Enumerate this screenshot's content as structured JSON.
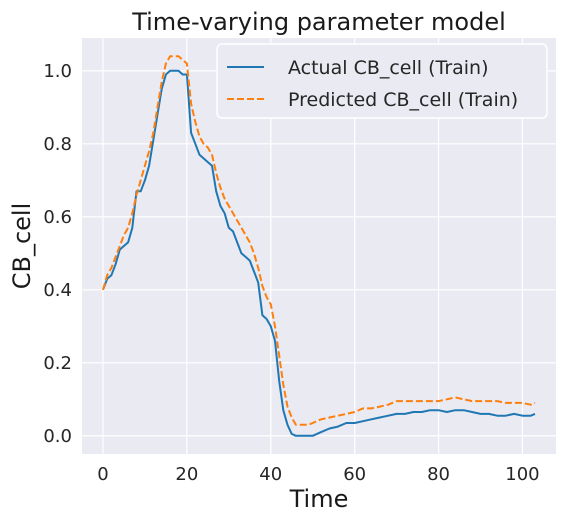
{
  "chart_data": {
    "type": "line",
    "title": "Time-varying parameter model",
    "xlabel": "Time",
    "ylabel": "CB_cell",
    "xlim": [
      -5,
      108
    ],
    "ylim": [
      -0.05,
      1.09
    ],
    "xticks": [
      0,
      20,
      40,
      60,
      80,
      100
    ],
    "yticks": [
      0.0,
      0.2,
      0.4,
      0.6,
      0.8,
      1.0
    ],
    "xtick_labels": [
      "0",
      "20",
      "40",
      "60",
      "80",
      "100"
    ],
    "ytick_labels": [
      "0.0",
      "0.2",
      "0.4",
      "0.6",
      "0.8",
      "1.0"
    ],
    "grid": true,
    "legend_position": "top-right",
    "background_color": "#eaeaf2",
    "series": [
      {
        "name": "Actual CB_cell (Train)",
        "color": "#1f77b4",
        "style": "solid",
        "x": [
          0,
          1,
          2,
          3,
          4,
          5,
          6,
          7,
          8,
          9,
          10,
          11,
          12,
          13,
          14,
          15,
          16,
          17,
          18,
          19,
          20,
          21,
          22,
          23,
          24,
          25,
          26,
          27,
          28,
          29,
          30,
          31,
          32,
          33,
          34,
          35,
          36,
          37,
          38,
          39,
          40,
          41,
          42,
          43,
          44,
          45,
          46,
          47,
          48,
          49,
          50,
          52,
          54,
          56,
          58,
          60,
          62,
          64,
          66,
          68,
          70,
          72,
          74,
          76,
          78,
          80,
          82,
          84,
          86,
          88,
          90,
          92,
          94,
          96,
          98,
          100,
          102,
          103
        ],
        "y": [
          0.4,
          0.43,
          0.44,
          0.47,
          0.51,
          0.52,
          0.53,
          0.57,
          0.67,
          0.67,
          0.7,
          0.74,
          0.81,
          0.88,
          0.95,
          0.99,
          1.0,
          1.0,
          1.0,
          0.99,
          0.99,
          0.83,
          0.8,
          0.77,
          0.76,
          0.75,
          0.74,
          0.67,
          0.63,
          0.61,
          0.57,
          0.56,
          0.53,
          0.5,
          0.49,
          0.48,
          0.45,
          0.42,
          0.33,
          0.32,
          0.3,
          0.26,
          0.15,
          0.07,
          0.03,
          0.005,
          0.0,
          0.0,
          0.0,
          0.0,
          0.0,
          0.01,
          0.02,
          0.025,
          0.035,
          0.035,
          0.04,
          0.045,
          0.05,
          0.055,
          0.06,
          0.06,
          0.065,
          0.065,
          0.07,
          0.07,
          0.065,
          0.07,
          0.07,
          0.065,
          0.06,
          0.06,
          0.055,
          0.055,
          0.06,
          0.055,
          0.055,
          0.06
        ]
      },
      {
        "name": "Predicted CB_cell (Train)",
        "color": "#ff7f0e",
        "style": "dashed",
        "x": [
          0,
          1,
          2,
          3,
          4,
          5,
          6,
          7,
          8,
          9,
          10,
          11,
          12,
          13,
          14,
          15,
          16,
          17,
          18,
          19,
          20,
          21,
          22,
          23,
          24,
          25,
          26,
          27,
          28,
          29,
          30,
          31,
          32,
          33,
          34,
          35,
          36,
          37,
          38,
          39,
          40,
          41,
          42,
          43,
          44,
          45,
          46,
          47,
          48,
          49,
          50,
          52,
          54,
          56,
          58,
          60,
          62,
          64,
          66,
          68,
          70,
          72,
          74,
          76,
          78,
          80,
          82,
          84,
          86,
          88,
          90,
          92,
          94,
          96,
          98,
          100,
          102,
          103
        ],
        "y": [
          0.4,
          0.44,
          0.46,
          0.49,
          0.52,
          0.55,
          0.57,
          0.61,
          0.66,
          0.7,
          0.74,
          0.78,
          0.83,
          0.9,
          0.97,
          1.02,
          1.04,
          1.04,
          1.04,
          1.03,
          1.02,
          0.91,
          0.86,
          0.82,
          0.8,
          0.79,
          0.77,
          0.72,
          0.68,
          0.65,
          0.63,
          0.61,
          0.59,
          0.57,
          0.55,
          0.53,
          0.5,
          0.46,
          0.41,
          0.38,
          0.36,
          0.3,
          0.22,
          0.14,
          0.08,
          0.05,
          0.03,
          0.03,
          0.03,
          0.03,
          0.035,
          0.045,
          0.05,
          0.055,
          0.06,
          0.065,
          0.075,
          0.075,
          0.08,
          0.085,
          0.095,
          0.095,
          0.095,
          0.095,
          0.095,
          0.095,
          0.1,
          0.105,
          0.1,
          0.095,
          0.095,
          0.095,
          0.095,
          0.09,
          0.09,
          0.09,
          0.085,
          0.09
        ]
      }
    ]
  }
}
